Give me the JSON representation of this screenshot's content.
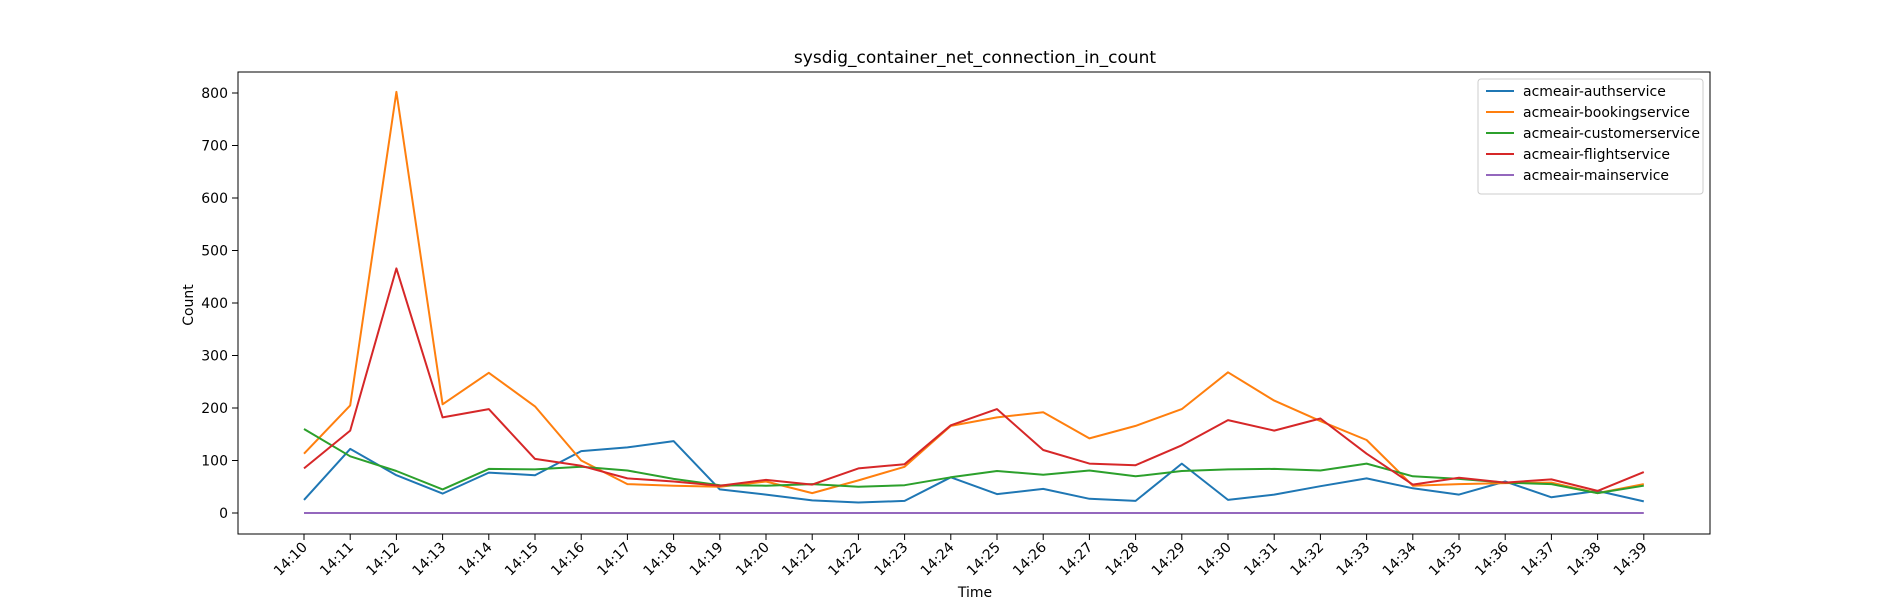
{
  "chart_data": {
    "type": "line",
    "title": "sysdig_container_net_connection_in_count",
    "xlabel": "Time",
    "ylabel": "Count",
    "ylim": [
      -40,
      840
    ],
    "yticks": [
      0,
      100,
      200,
      300,
      400,
      500,
      600,
      700,
      800
    ],
    "categories": [
      "14:10",
      "14:11",
      "14:12",
      "14:13",
      "14:14",
      "14:15",
      "14:16",
      "14:17",
      "14:18",
      "14:19",
      "14:20",
      "14:21",
      "14:22",
      "14:23",
      "14:24",
      "14:25",
      "14:26",
      "14:27",
      "14:28",
      "14:29",
      "14:30",
      "14:31",
      "14:32",
      "14:33",
      "14:34",
      "14:35",
      "14:36",
      "14:37",
      "14:38",
      "14:39"
    ],
    "grid": false,
    "legend_position": "top-right",
    "series": [
      {
        "name": "acmeair-authservice",
        "color": "#1f77b4",
        "values": [
          25,
          122,
          72,
          37,
          77,
          72,
          118,
          125,
          137,
          45,
          35,
          24,
          20,
          23,
          68,
          36,
          46,
          27,
          23,
          94,
          25,
          35,
          51,
          66,
          47,
          35,
          60,
          30,
          42,
          22
        ]
      },
      {
        "name": "acmeair-bookingservice",
        "color": "#ff7f0e",
        "values": [
          113,
          205,
          802,
          207,
          267,
          203,
          100,
          55,
          52,
          50,
          60,
          38,
          62,
          88,
          166,
          182,
          192,
          142,
          166,
          198,
          268,
          214,
          175,
          139,
          52,
          55,
          57,
          58,
          38,
          55
        ]
      },
      {
        "name": "acmeair-customerservice",
        "color": "#2ca02c",
        "values": [
          160,
          108,
          80,
          45,
          84,
          83,
          88,
          81,
          65,
          53,
          52,
          55,
          50,
          53,
          68,
          80,
          73,
          81,
          70,
          80,
          83,
          84,
          81,
          94,
          70,
          65,
          58,
          55,
          38,
          52
        ]
      },
      {
        "name": "acmeair-flightservice",
        "color": "#d62728",
        "values": [
          85,
          157,
          466,
          182,
          198,
          103,
          90,
          66,
          60,
          52,
          63,
          54,
          85,
          93,
          167,
          198,
          120,
          94,
          91,
          129,
          177,
          157,
          180,
          113,
          54,
          67,
          58,
          64,
          42,
          78
        ]
      },
      {
        "name": "acmeair-mainservice",
        "color": "#9467bd",
        "values": [
          0,
          0,
          0,
          0,
          0,
          0,
          0,
          0,
          0,
          0,
          0,
          0,
          0,
          0,
          0,
          0,
          0,
          0,
          0,
          0,
          0,
          0,
          0,
          0,
          0,
          0,
          0,
          0,
          0,
          0
        ]
      }
    ]
  }
}
